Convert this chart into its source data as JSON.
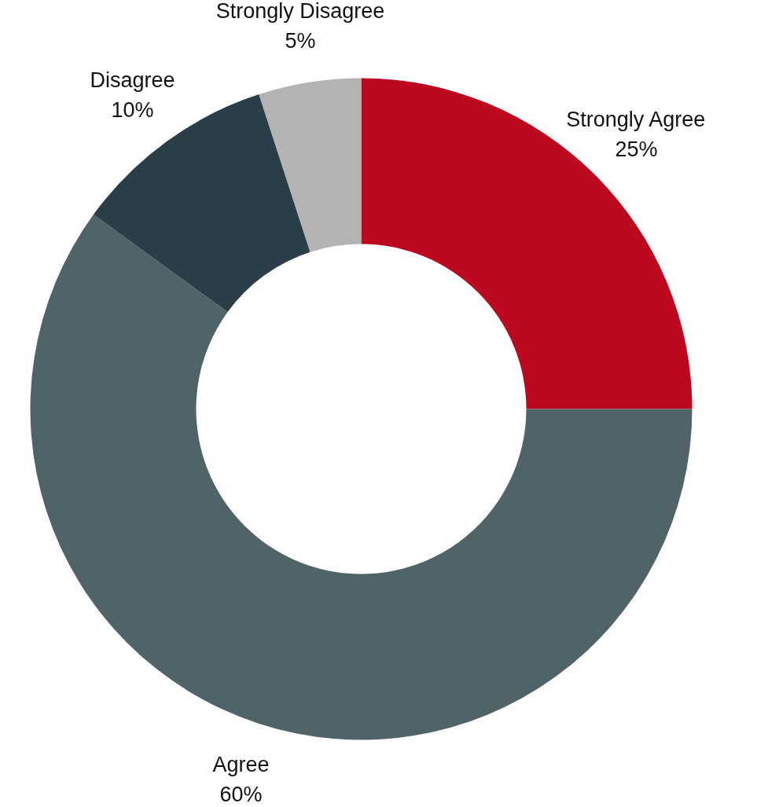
{
  "chart_data": {
    "type": "donut",
    "categories": [
      "Strongly Agree",
      "Agree",
      "Disagree",
      "Strongly Disagree"
    ],
    "values": [
      25,
      60,
      10,
      5
    ],
    "colors": [
      "#bd0920",
      "#506369",
      "#2b3d46",
      "#b3b3b3"
    ],
    "value_labels": [
      "25%",
      "60%",
      "10%",
      "5%"
    ],
    "legend": false
  }
}
